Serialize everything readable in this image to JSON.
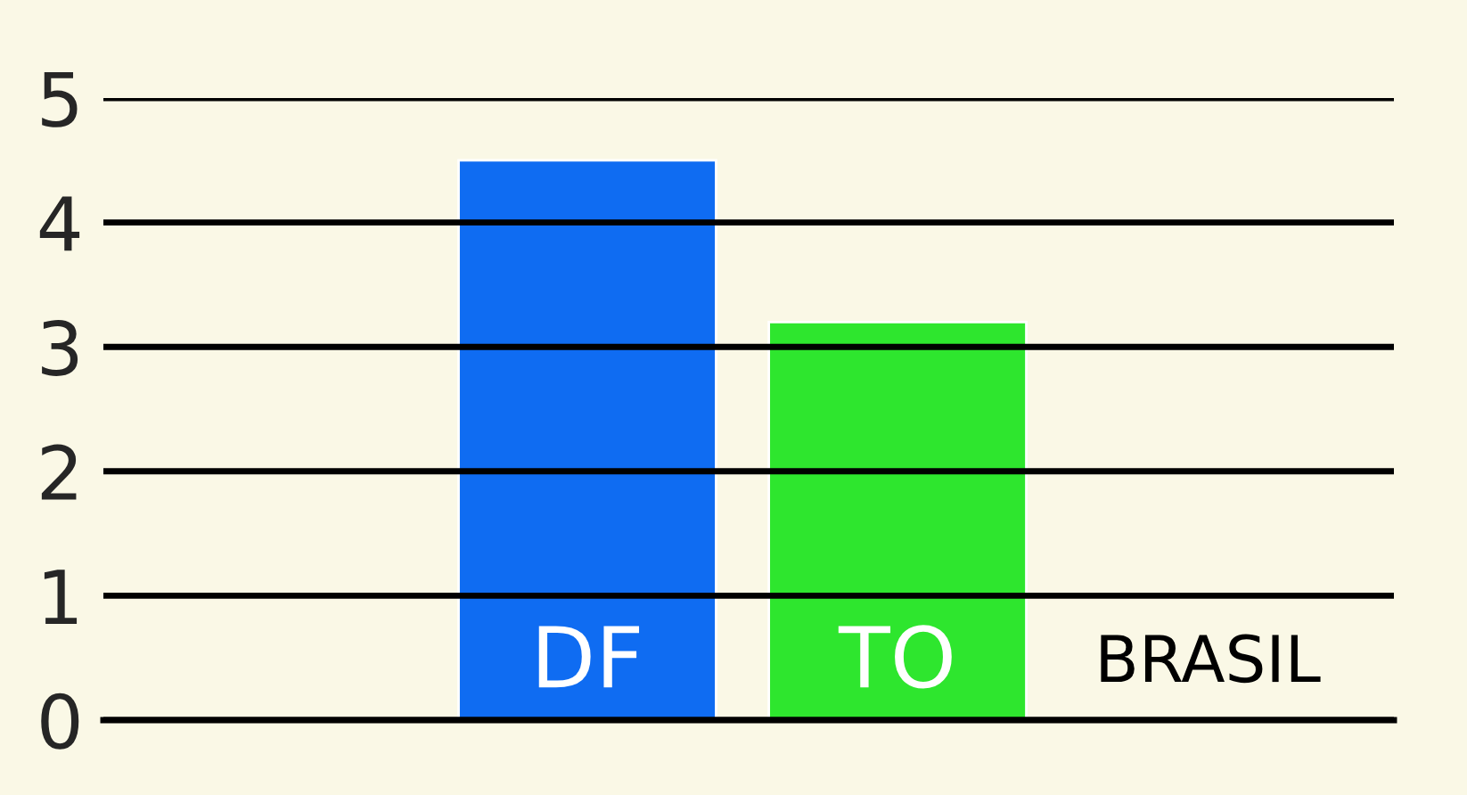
{
  "chart_data": {
    "type": "bar",
    "categories": [
      "DF",
      "TO",
      "BRASIL"
    ],
    "series": [
      {
        "values": [
          4.5,
          3.2,
          null
        ],
        "colors": [
          "#0f6cf2",
          "#2ee62e",
          null
        ]
      }
    ],
    "ylim": [
      0,
      5
    ],
    "yticks": [
      0,
      1,
      2,
      3,
      4,
      5
    ],
    "grid": "y",
    "legend": false
  }
}
